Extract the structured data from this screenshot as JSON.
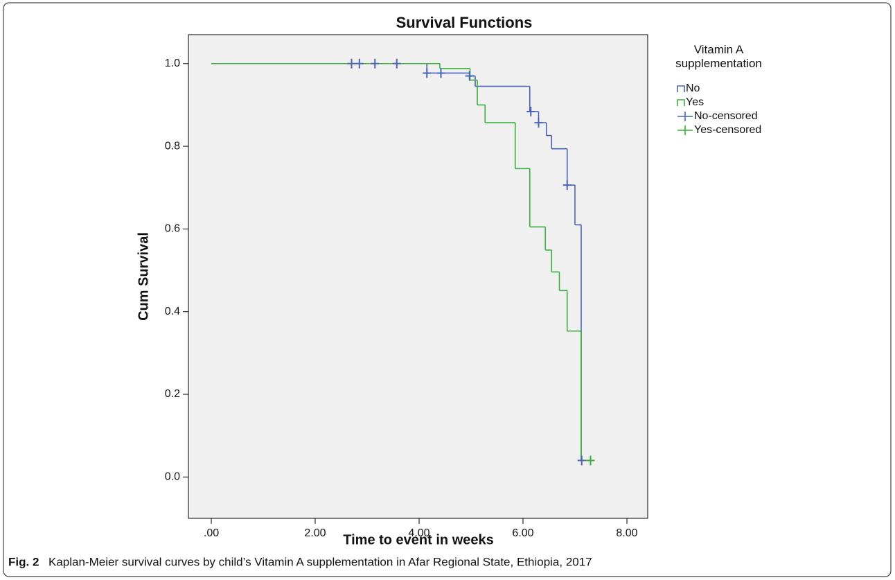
{
  "chart_data": {
    "type": "survival",
    "title": "Survival Functions",
    "x_label": "Time to event in weeks",
    "y_label": "Cum Survival",
    "legend_title": "Vitamin A supplementation",
    "legend": "right",
    "grid": false,
    "background": "#f0f0f0",
    "xlim": [
      -0.44,
      8.4
    ],
    "ylim": [
      -0.1,
      1.07
    ],
    "xticks": [
      {
        "value": 0,
        "label": ".00"
      },
      {
        "value": 2,
        "label": "2.00"
      },
      {
        "value": 4,
        "label": "4.00"
      },
      {
        "value": 6,
        "label": "6.00"
      },
      {
        "value": 8,
        "label": "8.00"
      }
    ],
    "yticks": [
      {
        "value": 0,
        "label": "0.0"
      },
      0.2,
      0.4,
      0.6,
      0.8,
      {
        "value": 1,
        "label": "1.0"
      }
    ],
    "series": [
      {
        "name": "No",
        "color": "#4a63b3",
        "line": "step",
        "x": [
          0,
          4.15,
          4.97,
          5.08,
          6.13,
          6.3,
          6.45,
          6.55,
          6.85,
          7.0,
          7.12,
          7.13
        ],
        "values": [
          1,
          0.977,
          0.97,
          0.945,
          0.884,
          0.857,
          0.826,
          0.794,
          0.706,
          0.61,
          0.04,
          0.04
        ]
      },
      {
        "name": "Yes",
        "color": "#3aae3a",
        "line": "step",
        "x": [
          0,
          4.4,
          4.98,
          5.12,
          5.27,
          5.85,
          6.13,
          6.43,
          6.55,
          6.7,
          6.85,
          7.12,
          7.3
        ],
        "values": [
          1,
          0.988,
          0.96,
          0.9,
          0.857,
          0.746,
          0.605,
          0.549,
          0.496,
          0.451,
          0.353,
          0.04,
          0.04
        ]
      },
      {
        "name": "No-censored",
        "color": "#4a63b3",
        "marker": "+",
        "x": [
          2.7,
          2.85,
          3.15,
          3.57,
          4.15,
          4.42,
          4.97,
          6.15,
          6.3,
          6.85,
          7.13
        ],
        "values": [
          1,
          1,
          1,
          1,
          0.977,
          0.977,
          0.97,
          0.884,
          0.857,
          0.706,
          0.04
        ]
      },
      {
        "name": "Yes-censored",
        "color": "#3aae3a",
        "marker": "+",
        "x": [
          7.3
        ],
        "values": [
          0.04
        ]
      }
    ]
  },
  "caption": {
    "label": "Fig. 2",
    "text": "Kaplan-Meier survival curves by child’s Vitamin A supplementation in Afar Regional State, Ethiopia, 2017"
  }
}
